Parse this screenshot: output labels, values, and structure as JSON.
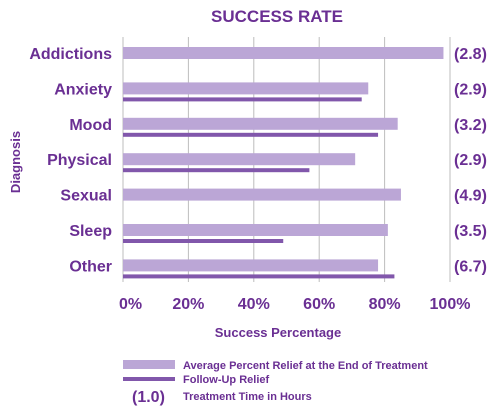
{
  "chart_data": {
    "type": "bar",
    "orientation": "horizontal",
    "title": "SUCCESS RATE",
    "xlabel": "Success Percentage",
    "ylabel": "Diagnosis",
    "xlim": [
      0,
      100
    ],
    "x_ticks": [
      "0%",
      "20%",
      "40%",
      "60%",
      "80%",
      "100%"
    ],
    "grid": true,
    "legend_position": "bottom",
    "categories": [
      "Addictions",
      "Anxiety",
      "Mood",
      "Physical",
      "Sexual",
      "Sleep",
      "Other"
    ],
    "series": [
      {
        "name": "Average Percent Relief at the End of Treatment",
        "style": "bar",
        "color": "#bba6d6",
        "values": [
          98,
          75,
          84,
          71,
          85,
          81,
          78
        ]
      },
      {
        "name": "Follow-Up Relief",
        "style": "line",
        "color": "#8157ab",
        "values": [
          null,
          73,
          78,
          57,
          null,
          49,
          83
        ]
      }
    ],
    "treatment_hours": {
      "name": "Treatment Time in Hours",
      "legend_symbol": "(1.0)",
      "labels": [
        "(2.8)",
        "(2.9)",
        "(3.2)",
        "(2.9)",
        "(4.9)",
        "(3.5)",
        "(6.7)"
      ]
    }
  },
  "colors": {
    "text": "#6a2f93",
    "bar": "#bba6d6",
    "line": "#8157ab",
    "grid": "#bdbdbd"
  }
}
